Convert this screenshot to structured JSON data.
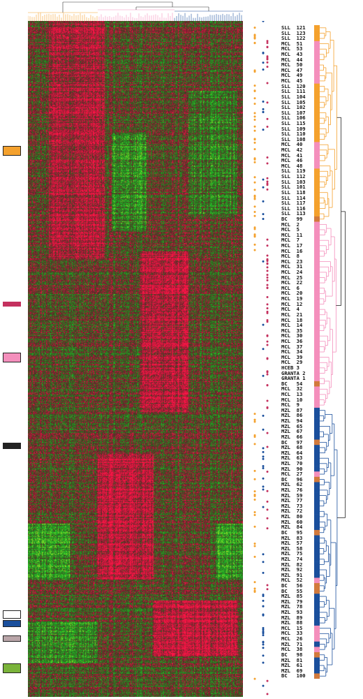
{
  "colors": {
    "sll": "#f4a12d",
    "mcl": "#f48fbc",
    "mzl": "#1a4f9c",
    "bc": "#d27a3c",
    "heat_red": "#e8154a",
    "heat_green": "#1f7d2c",
    "heat_bright_green": "#9ad12a"
  },
  "samples": [
    {
      "label": "SLL  121",
      "type": "sll"
    },
    {
      "label": "SLL  123",
      "type": "sll"
    },
    {
      "label": "SLL  122",
      "type": "sll"
    },
    {
      "label": "MCL  51",
      "type": "mcl"
    },
    {
      "label": "MCL  53",
      "type": "mcl"
    },
    {
      "label": "MCL  43",
      "type": "mcl"
    },
    {
      "label": "MCL  44",
      "type": "mcl"
    },
    {
      "label": "MCL  50",
      "type": "mcl"
    },
    {
      "label": "MCL  47",
      "type": "mcl"
    },
    {
      "label": "MCL  49",
      "type": "mcl"
    },
    {
      "label": "MCL  45",
      "type": "mcl"
    },
    {
      "label": "SLL  120",
      "type": "sll"
    },
    {
      "label": "SLL  111",
      "type": "sll"
    },
    {
      "label": "SLL  104",
      "type": "sll"
    },
    {
      "label": "SLL  105",
      "type": "sll"
    },
    {
      "label": "SLL  102",
      "type": "sll"
    },
    {
      "label": "SLL  107",
      "type": "sll"
    },
    {
      "label": "SLL  106",
      "type": "sll"
    },
    {
      "label": "SLL  115",
      "type": "sll"
    },
    {
      "label": "SLL  109",
      "type": "sll"
    },
    {
      "label": "SLL  110",
      "type": "sll"
    },
    {
      "label": "SLL  108",
      "type": "sll"
    },
    {
      "label": "MCL  40",
      "type": "mcl"
    },
    {
      "label": "MCL  42",
      "type": "mcl"
    },
    {
      "label": "MCL  41",
      "type": "mcl"
    },
    {
      "label": "MCL  46",
      "type": "mcl"
    },
    {
      "label": "MCL  48",
      "type": "mcl"
    },
    {
      "label": "SLL  119",
      "type": "sll"
    },
    {
      "label": "SLL  112",
      "type": "sll"
    },
    {
      "label": "SLL  103",
      "type": "sll"
    },
    {
      "label": "SLL  101",
      "type": "sll"
    },
    {
      "label": "SLL  118",
      "type": "sll"
    },
    {
      "label": "SLL  114",
      "type": "sll"
    },
    {
      "label": "SLL  117",
      "type": "sll"
    },
    {
      "label": "SLL  116",
      "type": "sll"
    },
    {
      "label": "SLL  113",
      "type": "sll"
    },
    {
      "label": "BC   99",
      "type": "bc"
    },
    {
      "label": "MCL  2",
      "type": "mcl"
    },
    {
      "label": "MCL  5",
      "type": "mcl"
    },
    {
      "label": "MCL  11",
      "type": "mcl"
    },
    {
      "label": "MCL  7",
      "type": "mcl"
    },
    {
      "label": "MCL  17",
      "type": "mcl"
    },
    {
      "label": "MCL  16",
      "type": "mcl"
    },
    {
      "label": "MCL  8",
      "type": "mcl"
    },
    {
      "label": "MCL  23",
      "type": "mcl"
    },
    {
      "label": "MCL  31",
      "type": "mcl"
    },
    {
      "label": "MCL  24",
      "type": "mcl"
    },
    {
      "label": "MCL  25",
      "type": "mcl"
    },
    {
      "label": "MCL  22",
      "type": "mcl"
    },
    {
      "label": "MCL  6",
      "type": "mcl"
    },
    {
      "label": "MCL  20",
      "type": "mcl"
    },
    {
      "label": "MCL  19",
      "type": "mcl"
    },
    {
      "label": "MCL  12",
      "type": "mcl"
    },
    {
      "label": "MCL  4",
      "type": "mcl"
    },
    {
      "label": "MCL  21",
      "type": "mcl"
    },
    {
      "label": "MCL  18",
      "type": "mcl"
    },
    {
      "label": "MCL  14",
      "type": "mcl"
    },
    {
      "label": "MCL  35",
      "type": "mcl"
    },
    {
      "label": "MCL  30",
      "type": "mcl"
    },
    {
      "label": "MCL  36",
      "type": "mcl"
    },
    {
      "label": "MCL  37",
      "type": "mcl"
    },
    {
      "label": "MCL  34",
      "type": "mcl"
    },
    {
      "label": "MCL  39",
      "type": "mcl"
    },
    {
      "label": "MCL  29",
      "type": "mcl"
    },
    {
      "label": "HCEB 3",
      "type": "mcl"
    },
    {
      "label": "GRANTA 2",
      "type": "mcl"
    },
    {
      "label": "GRANTA 1",
      "type": "mcl"
    },
    {
      "label": "BC   54",
      "type": "bc"
    },
    {
      "label": "MCL  32",
      "type": "mcl"
    },
    {
      "label": "MCL  13",
      "type": "mcl"
    },
    {
      "label": "MCL  10",
      "type": "mcl"
    },
    {
      "label": "MCL  9",
      "type": "mcl"
    },
    {
      "label": "MZL  87",
      "type": "mzl"
    },
    {
      "label": "MZL  86",
      "type": "mzl"
    },
    {
      "label": "MZL  94",
      "type": "mzl"
    },
    {
      "label": "MZL  65",
      "type": "mzl"
    },
    {
      "label": "MZL  67",
      "type": "mzl"
    },
    {
      "label": "MZL  66",
      "type": "mzl"
    },
    {
      "label": "BC   97",
      "type": "bc"
    },
    {
      "label": "MZL  68",
      "type": "mzl"
    },
    {
      "label": "MZL  64",
      "type": "mzl"
    },
    {
      "label": "MZL  63",
      "type": "mzl"
    },
    {
      "label": "MZL  70",
      "type": "mzl"
    },
    {
      "label": "MZL  90",
      "type": "mzl"
    },
    {
      "label": "MCL  27",
      "type": "mcl"
    },
    {
      "label": "BC   96",
      "type": "bc"
    },
    {
      "label": "MZL  62",
      "type": "mzl"
    },
    {
      "label": "MZL  76",
      "type": "mzl"
    },
    {
      "label": "MZL  59",
      "type": "mzl"
    },
    {
      "label": "MZL  77",
      "type": "mzl"
    },
    {
      "label": "MZL  73",
      "type": "mzl"
    },
    {
      "label": "MZL  72",
      "type": "mzl"
    },
    {
      "label": "MZL  80",
      "type": "mzl"
    },
    {
      "label": "MZL  60",
      "type": "mzl"
    },
    {
      "label": "MZL  84",
      "type": "mzl"
    },
    {
      "label": "BC   95",
      "type": "bc"
    },
    {
      "label": "MZL  83",
      "type": "mzl"
    },
    {
      "label": "MZL  57",
      "type": "mzl"
    },
    {
      "label": "MZL  58",
      "type": "mzl"
    },
    {
      "label": "MZL  75",
      "type": "mzl"
    },
    {
      "label": "MZL  74",
      "type": "mzl"
    },
    {
      "label": "MZL  82",
      "type": "mzl"
    },
    {
      "label": "MZL  92",
      "type": "mzl"
    },
    {
      "label": "MZL  91",
      "type": "mzl"
    },
    {
      "label": "MCL  52",
      "type": "mcl"
    },
    {
      "label": "BC   56",
      "type": "bc"
    },
    {
      "label": "BC   55",
      "type": "bc"
    },
    {
      "label": "MZL  85",
      "type": "mzl"
    },
    {
      "label": "MZL  79",
      "type": "mzl"
    },
    {
      "label": "MZL  78",
      "type": "mzl"
    },
    {
      "label": "MZL  93",
      "type": "mzl"
    },
    {
      "label": "MZL  89",
      "type": "mzl"
    },
    {
      "label": "MZL  88",
      "type": "mzl"
    },
    {
      "label": "MCL  15",
      "type": "mcl"
    },
    {
      "label": "MCL  33",
      "type": "mcl"
    },
    {
      "label": "MCL  26",
      "type": "mcl"
    },
    {
      "label": "MZL  71",
      "type": "mzl"
    },
    {
      "label": "MCL  38",
      "type": "mcl"
    },
    {
      "label": "BC   98",
      "type": "bc"
    },
    {
      "label": "MZL  81",
      "type": "mzl"
    },
    {
      "label": "MZL  61",
      "type": "mzl"
    },
    {
      "label": "MZL  69",
      "type": "mzl"
    },
    {
      "label": "BC   100",
      "type": "bc"
    }
  ],
  "cluster_markers": [
    {
      "name": "orange-marker",
      "color": "#f4a12d"
    },
    {
      "name": "magenta-marker",
      "color": "#c4305e"
    },
    {
      "name": "pink-marker",
      "color": "#f48fbc"
    },
    {
      "name": "black-marker",
      "color": "#222222"
    },
    {
      "name": "white-marker",
      "color": "#ffffff"
    },
    {
      "name": "blue-marker",
      "color": "#1a4f9c"
    },
    {
      "name": "gray-marker",
      "color": "#b9a5a8"
    },
    {
      "name": "green-marker",
      "color": "#7ab33a"
    }
  ]
}
